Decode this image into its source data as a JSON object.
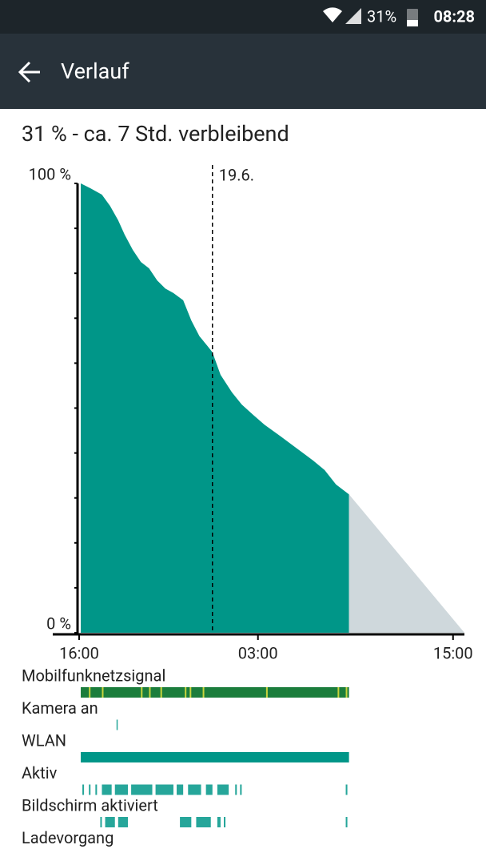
{
  "status_bar": {
    "battery": "31%",
    "time": "08:28"
  },
  "app_bar": {
    "title": "Verlauf"
  },
  "summary": "31 % - ca. 7 Std. verbleibend",
  "chart_data": {
    "type": "area",
    "x": [
      0.1,
      0.7,
      1.4,
      1.9,
      2.4,
      2.8,
      3.3,
      3.8,
      4.3,
      4.8,
      5.3,
      5.8,
      6.4,
      6.9,
      7.4,
      7.9,
      8.2,
      8.7,
      9.4,
      10.0,
      10.7,
      11.4,
      12.4,
      13.4,
      14.4,
      15.1,
      15.8,
      16.6
    ],
    "values": [
      100,
      98.9,
      97.5,
      95,
      91.8,
      88.6,
      85.2,
      82.5,
      81.1,
      78.4,
      76.6,
      75.6,
      74,
      69.5,
      66,
      63.8,
      62.4,
      57.4,
      53.5,
      50.8,
      48.5,
      46.3,
      43.7,
      41,
      38.3,
      36.2,
      33,
      30.8
    ],
    "color": "#009688",
    "prediction": {
      "x": [
        16.6,
        23.7
      ],
      "values": [
        30.8,
        0
      ],
      "color": "#cfd8dc"
    },
    "xlim": [
      0,
      23.7
    ],
    "ylim": [
      0,
      100
    ],
    "xticks": [
      {
        "value": 0,
        "label": "16:00"
      },
      {
        "value": 11,
        "label": "03:00"
      },
      {
        "value": 23,
        "label": "15:00"
      }
    ],
    "yticks": [
      {
        "value": 0,
        "label": "0 %"
      },
      {
        "value": 100,
        "label": "100 %"
      }
    ],
    "minor_yticks": [
      10,
      20,
      30,
      40,
      50,
      60,
      70,
      80,
      90
    ],
    "marker": {
      "x": 8.2,
      "label": "19.6."
    }
  },
  "tracks": [
    {
      "label": "Mobilfunknetzsignal",
      "color": "#1b7d3c",
      "segments": [
        [
          0.1,
          16.6
        ]
      ],
      "highlight_color": "#c8d43c",
      "highlights": [
        0.6,
        1.4,
        3.8,
        4.3,
        5.0,
        6.5,
        6.8,
        7.6,
        11.5,
        15.9,
        16.4
      ]
    },
    {
      "label": "Kamera an",
      "color": "#26a69a",
      "segments": [
        [
          2.3,
          2.36
        ]
      ]
    },
    {
      "label": "WLAN",
      "color": "#009688",
      "segments": [
        [
          0.1,
          16.6
        ]
      ]
    },
    {
      "label": "Aktiv",
      "color": "#26a69a",
      "segments": [
        [
          0.2,
          0.3
        ],
        [
          0.6,
          0.7
        ],
        [
          1.0,
          1.1
        ],
        [
          1.4,
          2.0
        ],
        [
          2.2,
          3.0
        ],
        [
          3.2,
          4.5
        ],
        [
          4.7,
          5.8
        ],
        [
          6.0,
          6.4
        ],
        [
          6.7,
          7.5
        ],
        [
          7.8,
          8.2
        ],
        [
          8.5,
          9.2
        ],
        [
          9.6,
          9.7
        ],
        [
          9.9,
          10.0
        ],
        [
          16.4,
          16.5
        ]
      ]
    },
    {
      "label": "Bildschirm aktiviert",
      "color": "#26a69a",
      "segments": [
        [
          1.3,
          1.4
        ],
        [
          1.6,
          2.2
        ],
        [
          2.4,
          3.0
        ],
        [
          6.2,
          6.9
        ],
        [
          7.2,
          8.1
        ],
        [
          8.5,
          8.7
        ],
        [
          8.9,
          9.0
        ],
        [
          16.4,
          16.5
        ]
      ]
    },
    {
      "label": "Ladevorgang",
      "color": "#26a69a",
      "segments": []
    }
  ]
}
